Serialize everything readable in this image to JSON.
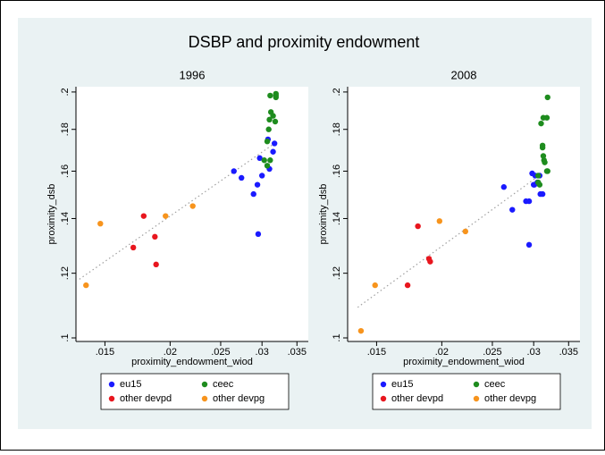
{
  "title": "DSBP and proximity endowment",
  "chart_data": [
    {
      "type": "scatter",
      "title": "1996",
      "xlabel": "proximity_endowment_wiod",
      "ylabel": "proximity_dsb",
      "xscale": "log",
      "yscale": "log",
      "grid": false,
      "legend": "below",
      "xlim": [
        0.0132,
        0.0368
      ],
      "ylim": [
        0.099,
        0.203
      ],
      "xticks": [
        {
          "value": 0.015,
          "label": ".015"
        },
        {
          "value": 0.02,
          "label": ".02"
        },
        {
          "value": 0.025,
          "label": ".025"
        },
        {
          "value": 0.03,
          "label": ".03"
        },
        {
          "value": 0.035,
          "label": ".035"
        }
      ],
      "yticks": [
        {
          "value": 0.1,
          "label": ".1"
        },
        {
          "value": 0.12,
          "label": ".12"
        },
        {
          "value": 0.14,
          "label": ".14"
        },
        {
          "value": 0.16,
          "label": ".16"
        },
        {
          "value": 0.18,
          "label": ".18"
        },
        {
          "value": 0.2,
          "label": ".2"
        }
      ],
      "series": [
        {
          "name": "eu15",
          "color": "#1a1aff",
          "x": [
            0.0265,
            0.0274,
            0.0294,
            0.0289,
            0.0297,
            0.03,
            0.0295,
            0.0308,
            0.031,
            0.0315,
            0.0317
          ],
          "y": [
            0.16,
            0.157,
            0.154,
            0.15,
            0.166,
            0.158,
            0.134,
            0.175,
            0.161,
            0.169,
            0.173
          ]
        },
        {
          "name": "ceec",
          "color": "#1e8c1e",
          "x": [
            0.0311,
            0.0319,
            0.0319,
            0.0319,
            0.031,
            0.0312,
            0.0315,
            0.0309,
            0.0318,
            0.0303,
            0.0307,
            0.0307,
            0.0311
          ],
          "y": [
            0.198,
            0.198,
            0.199,
            0.197,
            0.185,
            0.189,
            0.187,
            0.18,
            0.184,
            0.165,
            0.174,
            0.1625,
            0.165
          ]
        },
        {
          "name": "other devpd",
          "color": "#e8161e",
          "x": [
            0.0178,
            0.017,
            0.0187,
            0.0188
          ],
          "y": [
            0.141,
            0.129,
            0.133,
            0.123
          ]
        },
        {
          "name": "other devpg",
          "color": "#f7941d",
          "x": [
            0.0138,
            0.0147,
            0.0196,
            0.0221
          ],
          "y": [
            0.116,
            0.138,
            0.141,
            0.145
          ]
        }
      ],
      "fit": {
        "color": "#a0a0a0",
        "x": [
          0.0134,
          0.0317
        ],
        "y": [
          0.118,
          0.173
        ]
      }
    },
    {
      "type": "scatter",
      "title": "2008",
      "xlabel": "proximity_endowment_wiod",
      "ylabel": "proximity_dsb",
      "xscale": "log",
      "yscale": "log",
      "grid": false,
      "legend": "below",
      "xlim": [
        0.0132,
        0.0368
      ],
      "ylim": [
        0.099,
        0.203
      ],
      "xticks": [
        {
          "value": 0.015,
          "label": ".015"
        },
        {
          "value": 0.02,
          "label": ".02"
        },
        {
          "value": 0.025,
          "label": ".025"
        },
        {
          "value": 0.03,
          "label": ".03"
        },
        {
          "value": 0.035,
          "label": ".035"
        }
      ],
      "yticks": [
        {
          "value": 0.1,
          "label": ".1"
        },
        {
          "value": 0.12,
          "label": ".12"
        },
        {
          "value": 0.14,
          "label": ".14"
        },
        {
          "value": 0.16,
          "label": ".16"
        },
        {
          "value": 0.18,
          "label": ".18"
        },
        {
          "value": 0.2,
          "label": ".2"
        }
      ],
      "series": [
        {
          "name": "eu15",
          "color": "#1a1aff",
          "x": [
            0.0263,
            0.0273,
            0.029,
            0.0294,
            0.0298,
            0.03,
            0.0302,
            0.0305,
            0.0308,
            0.0309,
            0.0312,
            0.0294,
            0.0301
          ],
          "y": [
            0.153,
            0.1435,
            0.147,
            0.147,
            0.159,
            0.154,
            0.158,
            0.155,
            0.158,
            0.15,
            0.15,
            0.13,
            0.154
          ]
        },
        {
          "name": "ceec",
          "color": "#1e8c1e",
          "x": [
            0.0319,
            0.031,
            0.0318,
            0.0313,
            0.0312,
            0.0312,
            0.0314,
            0.0315,
            0.0319,
            0.0306,
            0.0308,
            0.0306,
            0.0318,
            0.0313
          ],
          "y": [
            0.197,
            0.183,
            0.186,
            0.186,
            0.171,
            0.172,
            0.165,
            0.164,
            0.16,
            0.158,
            0.154,
            0.155,
            0.16,
            0.167
          ]
        },
        {
          "name": "other devpd",
          "color": "#e8161e",
          "x": [
            0.018,
            0.0172,
            0.0189,
            0.019
          ],
          "y": [
            0.137,
            0.116,
            0.125,
            0.124
          ]
        },
        {
          "name": "other devpg",
          "color": "#f7941d",
          "x": [
            0.014,
            0.0149,
            0.0198,
            0.0222
          ],
          "y": [
            0.102,
            0.116,
            0.139,
            0.135
          ]
        }
      ],
      "fit": {
        "color": "#a0a0a0",
        "x": [
          0.0138,
          0.0303
        ],
        "y": [
          0.109,
          0.157
        ]
      }
    }
  ]
}
